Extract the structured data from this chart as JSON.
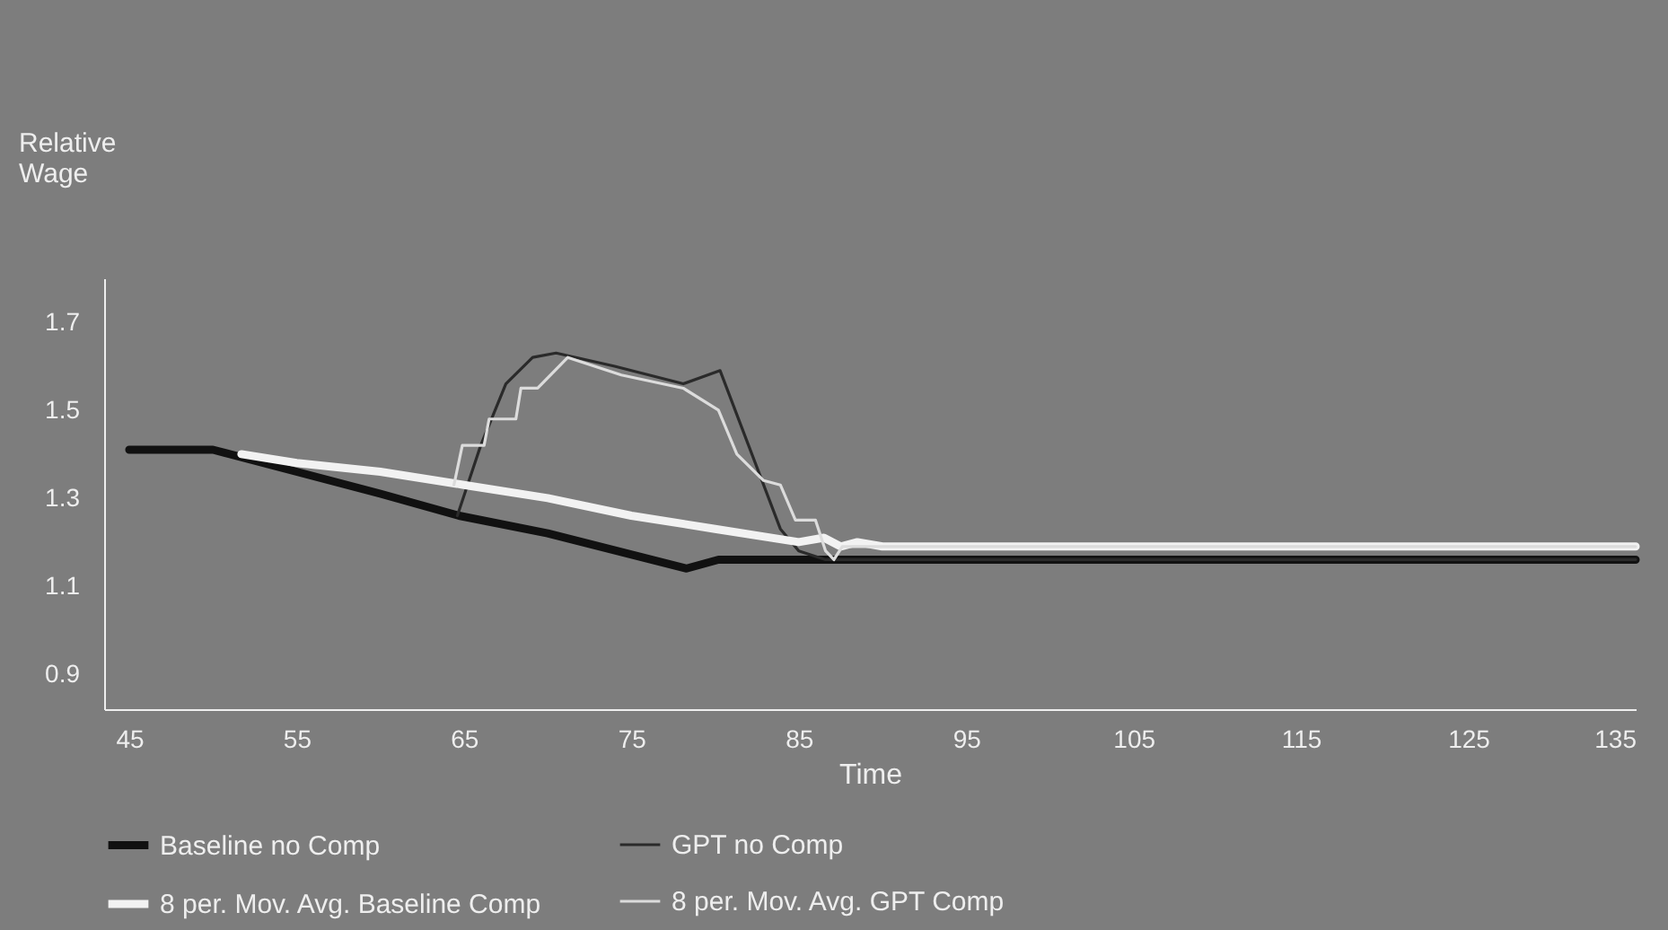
{
  "chart_data": {
    "type": "line",
    "xlabel": "Time",
    "ylabel": "Relative Wage",
    "xlim": [
      43.5,
      135
    ],
    "ylim": [
      0.82,
      1.8
    ],
    "xticks": [
      45,
      55,
      65,
      75,
      85,
      95,
      105,
      115,
      125,
      135
    ],
    "yticks": [
      0.9,
      1.1,
      1.3,
      1.5,
      1.7
    ],
    "grid": false,
    "legend": "bottom",
    "marker": "none",
    "line_style": "solid",
    "series": [
      {
        "name": "Baseline no Comp",
        "color": "#111111",
        "x": [
          45,
          50,
          55,
          60,
          64.7,
          70,
          78.3,
          80.2,
          90,
          135
        ],
        "values": [
          1.41,
          1.41,
          1.36,
          1.31,
          1.26,
          1.22,
          1.14,
          1.16,
          1.16,
          1.16
        ]
      },
      {
        "name": "GPT no Comp",
        "color": "#2a2a2a",
        "x": [
          64.6,
          66,
          67.5,
          69.1,
          70.5,
          74,
          78.1,
          80.3,
          82,
          83.9,
          85,
          86.6,
          90,
          135
        ],
        "values": [
          1.26,
          1.42,
          1.56,
          1.62,
          1.63,
          1.6,
          1.56,
          1.59,
          1.42,
          1.23,
          1.18,
          1.16,
          1.16,
          1.16
        ]
      },
      {
        "name": "8 per. Mov. Avg. Baseline Comp",
        "color": "#f2f2f2",
        "x": [
          51.7,
          55,
          60,
          65,
          70,
          75,
          80,
          85,
          86.5,
          87.5,
          88.5,
          90,
          135
        ],
        "values": [
          1.4,
          1.38,
          1.36,
          1.33,
          1.3,
          1.26,
          1.23,
          1.2,
          1.21,
          1.19,
          1.2,
          1.19,
          1.19
        ]
      },
      {
        "name": "8 per. Mov. Avg. GPT Comp",
        "color": "#dcdcdc",
        "x": [
          64.4,
          64.9,
          66.2,
          66.5,
          68.1,
          68.4,
          69.4,
          71.2,
          74.4,
          78.1,
          80.2,
          81.3,
          82.9,
          83.9,
          84.8,
          86,
          86.6,
          87.1,
          87.6,
          90,
          135
        ],
        "values": [
          1.33,
          1.42,
          1.42,
          1.48,
          1.48,
          1.55,
          1.55,
          1.62,
          1.58,
          1.55,
          1.5,
          1.4,
          1.34,
          1.33,
          1.25,
          1.25,
          1.18,
          1.16,
          1.19,
          1.19,
          1.19
        ]
      }
    ]
  }
}
